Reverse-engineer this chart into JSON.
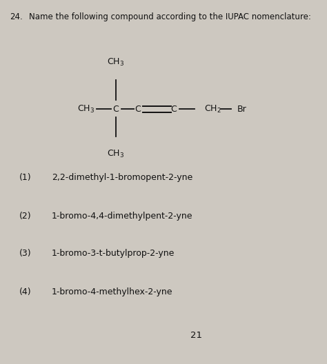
{
  "background_color": "#cdc8c0",
  "text_color": "#111111",
  "question_number": "24.",
  "question_text": "Name the following compound according to the IUPAC nomenclature:",
  "options": [
    {
      "num": "(1)",
      "text": "2,2-dimethyl-1-bromopent-2-yne"
    },
    {
      "num": "(2)",
      "text": "1-bromo-4,4-dimethylpent-2-yne"
    },
    {
      "num": "(3)",
      "text": "1-bromo-3-t-butylprop-2-yne"
    },
    {
      "num": "(4)",
      "text": "1-bromo-4-methylhex-2-yne"
    }
  ],
  "page_number": "21",
  "fig_width": 4.74,
  "fig_height": 5.28,
  "dpi": 100
}
